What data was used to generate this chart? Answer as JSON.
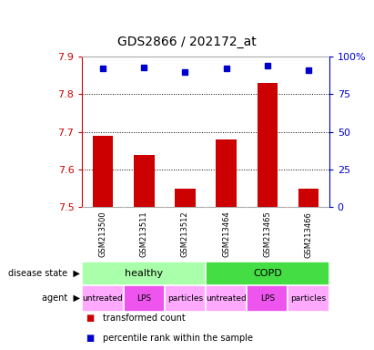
{
  "title": "GDS2866 / 202172_at",
  "samples": [
    "GSM213500",
    "GSM213511",
    "GSM213512",
    "GSM213464",
    "GSM213465",
    "GSM213466"
  ],
  "transformed_counts": [
    7.69,
    7.64,
    7.55,
    7.68,
    7.83,
    7.55
  ],
  "percentile_ranks": [
    92,
    93,
    90,
    92,
    94,
    91
  ],
  "ylim_left": [
    7.5,
    7.9
  ],
  "ylim_right": [
    0,
    100
  ],
  "yticks_left": [
    7.5,
    7.6,
    7.7,
    7.8,
    7.9
  ],
  "yticks_right": [
    0,
    25,
    50,
    75,
    100
  ],
  "ytick_labels_right": [
    "0",
    "25",
    "50",
    "75",
    "100%"
  ],
  "bar_color": "#cc0000",
  "dot_color": "#0000cc",
  "left_axis_color": "#cc0000",
  "right_axis_color": "#0000cc",
  "disease_states": [
    {
      "label": "healthy",
      "span": [
        0,
        3
      ],
      "color": "#aaffaa"
    },
    {
      "label": "COPD",
      "span": [
        3,
        6
      ],
      "color": "#44dd44"
    }
  ],
  "agents": [
    {
      "label": "untreated",
      "span": [
        0,
        1
      ],
      "color": "#ffaaff"
    },
    {
      "label": "LPS",
      "span": [
        1,
        2
      ],
      "color": "#ee55ee"
    },
    {
      "label": "particles",
      "span": [
        2,
        3
      ],
      "color": "#ffaaff"
    },
    {
      "label": "untreated",
      "span": [
        3,
        4
      ],
      "color": "#ffaaff"
    },
    {
      "label": "LPS",
      "span": [
        4,
        5
      ],
      "color": "#ee55ee"
    },
    {
      "label": "particles",
      "span": [
        5,
        6
      ],
      "color": "#ffaaff"
    }
  ],
  "legend_items": [
    {
      "label": "transformed count",
      "color": "#cc0000"
    },
    {
      "label": "percentile rank within the sample",
      "color": "#0000cc"
    }
  ],
  "background_color": "#ffffff",
  "title_fontsize": 10,
  "tick_fontsize": 8,
  "sample_fontsize": 6,
  "row_fontsize": 7.5,
  "legend_fontsize": 7
}
